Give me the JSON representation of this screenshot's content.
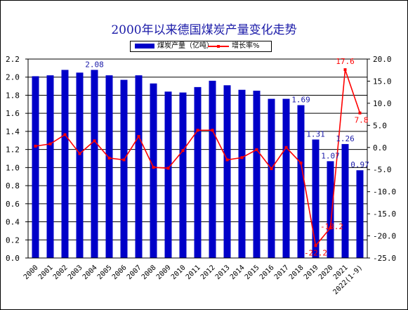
{
  "title": "2000年以来德国煤炭产量变化走势",
  "legend": {
    "bar_label": "煤炭产量（亿吨）",
    "line_label": "增长率%"
  },
  "colors": {
    "bar": "#0000c8",
    "line": "#ff0000",
    "title": "#1a1aa8",
    "bar_label": "#1a1aa8",
    "line_label": "#ff0000"
  },
  "chart_data": {
    "type": "bar",
    "title": "2000年以来德国煤炭产量变化走势",
    "categories": [
      "2000",
      "2001",
      "2002",
      "2003",
      "2004",
      "2005",
      "2006",
      "2007",
      "2008",
      "2009",
      "2010",
      "2011",
      "2012",
      "2013",
      "2014",
      "2015",
      "2016",
      "2017",
      "2018",
      "2019",
      "2020",
      "2021",
      "2022(1-9)"
    ],
    "series": [
      {
        "name": "煤炭产量（亿吨）",
        "type": "bar",
        "axis": "left",
        "values": [
          2.01,
          2.02,
          2.08,
          2.05,
          2.08,
          2.02,
          1.97,
          2.02,
          1.93,
          1.84,
          1.83,
          1.89,
          1.96,
          1.91,
          1.86,
          1.85,
          1.76,
          1.76,
          1.69,
          1.31,
          1.07,
          1.26,
          0.97
        ]
      },
      {
        "name": "增长率%",
        "type": "line",
        "axis": "right",
        "values": [
          0.3,
          0.8,
          2.9,
          -1.4,
          1.5,
          -2.4,
          -2.8,
          2.5,
          -4.5,
          -4.7,
          -0.7,
          3.9,
          3.9,
          -2.8,
          -2.3,
          -0.5,
          -4.8,
          0,
          -3.5,
          -22.2,
          -18.2,
          17.6,
          7.8
        ]
      }
    ],
    "left_axis": {
      "ylim": [
        0,
        2.2
      ],
      "ticks": [
        "0.0",
        "0.2",
        "0.4",
        "0.6",
        "0.8",
        "1.0",
        "1.2",
        "1.4",
        "1.6",
        "1.8",
        "2.0",
        "2.2"
      ]
    },
    "right_axis": {
      "ylim": [
        -25,
        20
      ],
      "ticks": [
        "-25.0",
        "-20.0",
        "-15.0",
        "-10.0",
        "-5.0",
        "0.0",
        "5.0",
        "10.0",
        "15.0",
        "20.0"
      ]
    },
    "bar_labels": [
      {
        "index": 4,
        "text": "2.08"
      },
      {
        "index": 18,
        "text": "1.69"
      },
      {
        "index": 19,
        "text": "1.31"
      },
      {
        "index": 20,
        "text": "1.07"
      },
      {
        "index": 21,
        "text": "1.26"
      },
      {
        "index": 22,
        "text": "0.97"
      }
    ],
    "line_labels": [
      {
        "index": 19,
        "text": "-22.2"
      },
      {
        "index": 20,
        "text": "-18.2"
      },
      {
        "index": 21,
        "text": "17.6"
      },
      {
        "index": 22,
        "text": "7.8"
      }
    ],
    "grid": true,
    "legend_position": "top-center"
  }
}
